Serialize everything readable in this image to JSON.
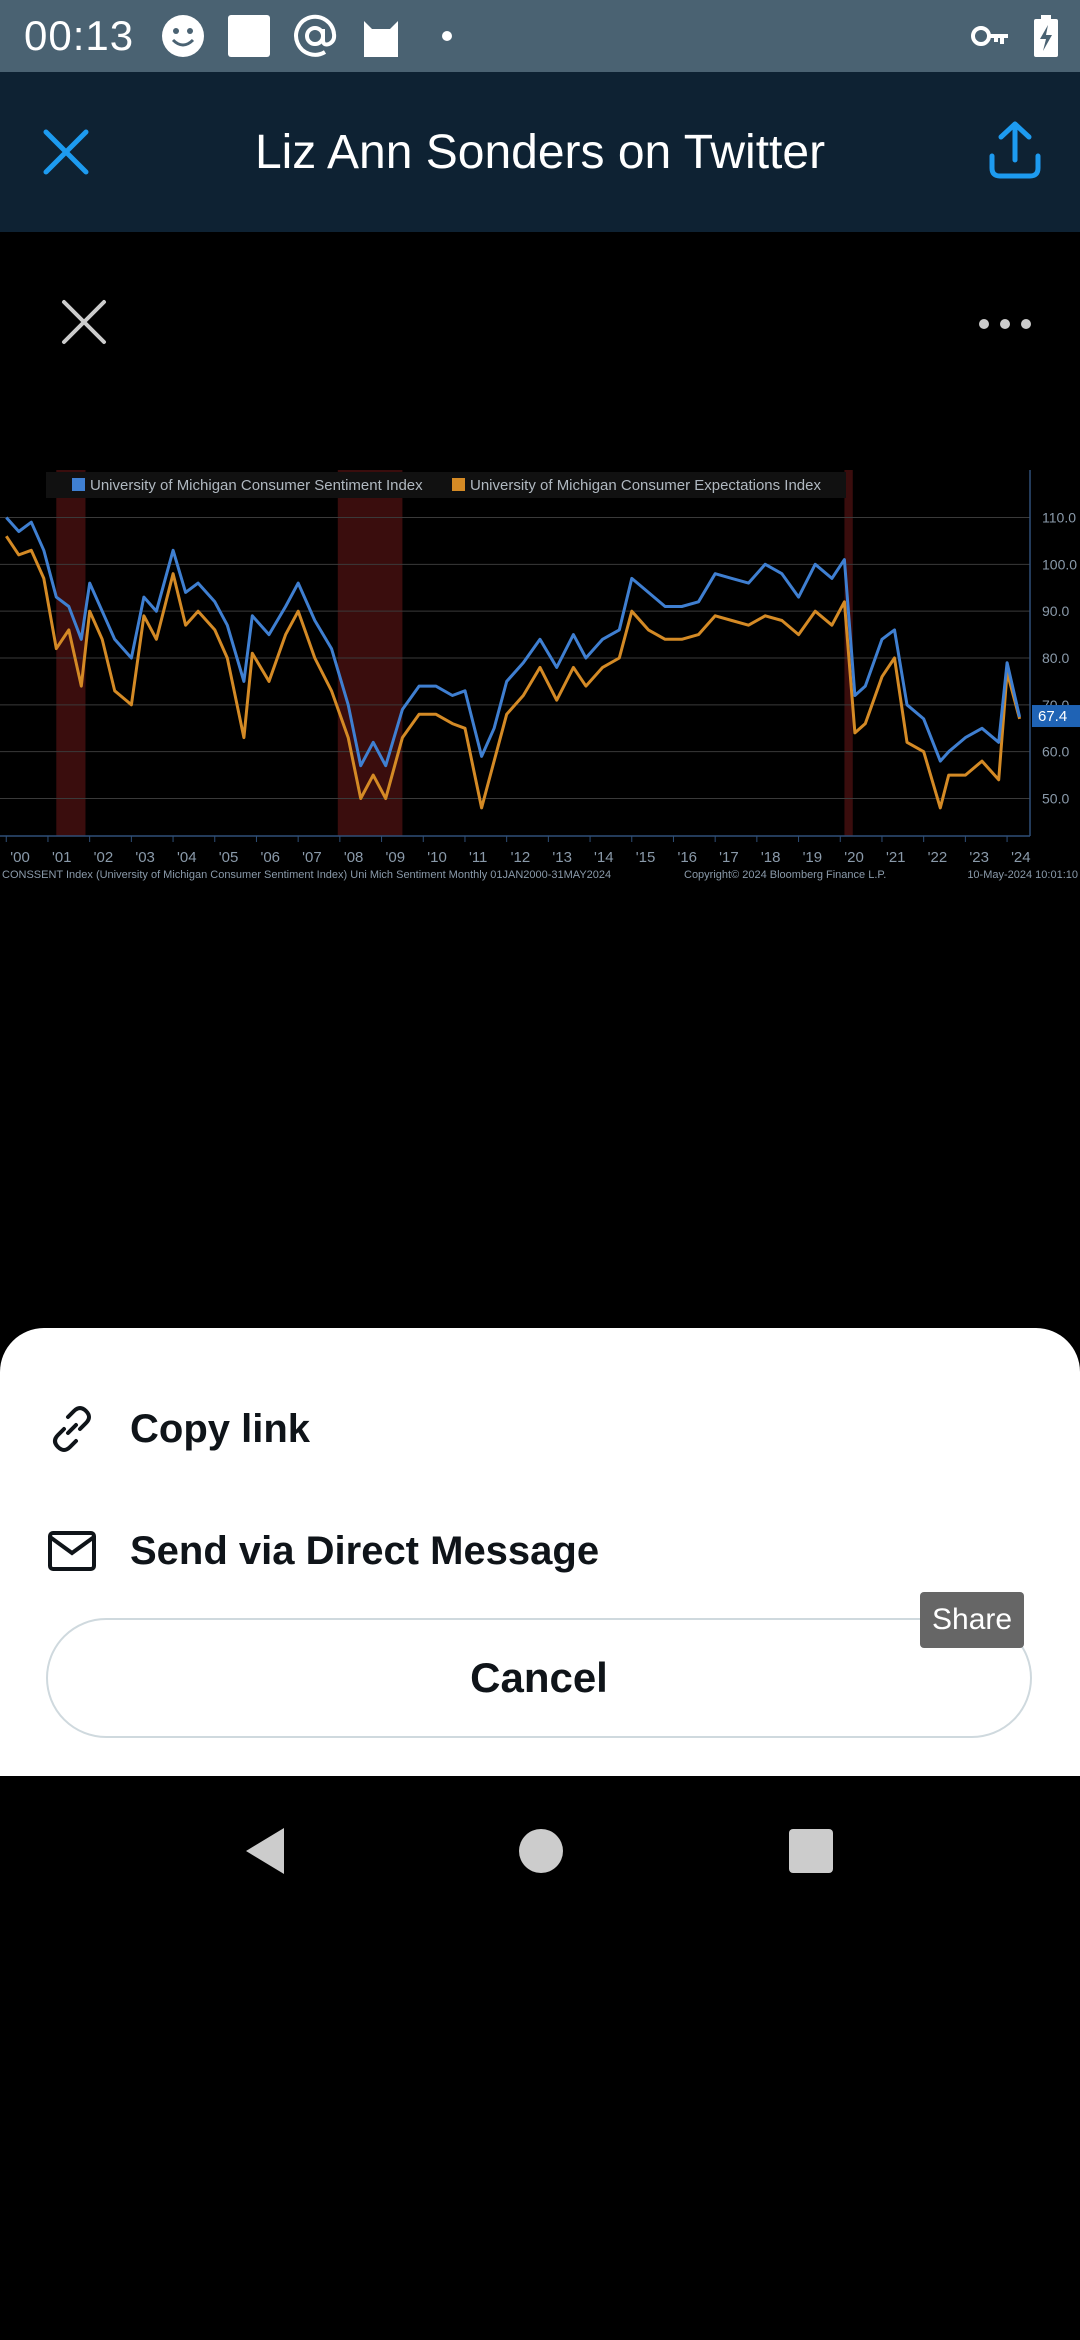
{
  "status_bar": {
    "time": "00:13",
    "left_icons": [
      "smiley-icon",
      "square-icon",
      "at-icon",
      "cat-icon",
      "dot-icon"
    ],
    "right_icons": [
      "key-icon",
      "battery-charging-icon"
    ]
  },
  "app_bar": {
    "title": "Liz Ann Sonders on Twitter",
    "background": "#0e2233",
    "accent": "#1d9bf0"
  },
  "viewer": {
    "close_icon": "close-icon",
    "more_icon": "more-horizontal-icon"
  },
  "chart_data": {
    "type": "line",
    "legend": [
      {
        "name": "University of Michigan Consumer Sentiment Index",
        "color": "#3f7fd1"
      },
      {
        "name": "University of Michigan Consumer Expectations Index",
        "color": "#d48a25"
      }
    ],
    "x_ticks": [
      "'00",
      "'01",
      "'02",
      "'03",
      "'04",
      "'05",
      "'06",
      "'07",
      "'08",
      "'09",
      "'10",
      "'11",
      "'12",
      "'13",
      "'14",
      "'15",
      "'16",
      "'17",
      "'18",
      "'19",
      "'20",
      "'21",
      "'22",
      "'23",
      "'24"
    ],
    "y_ticks": [
      "110.0",
      "100.0",
      "90.0",
      "80.0",
      "70.0",
      "60.0",
      "50.0"
    ],
    "ylim": [
      42,
      118
    ],
    "last_value_label": "67.4",
    "recession_shading": [
      [
        2001.2,
        2001.9
      ],
      [
        2007.95,
        2009.5
      ],
      [
        2020.1,
        2020.3
      ]
    ],
    "series": [
      {
        "name": "University of Michigan Consumer Sentiment Index",
        "x": [
          2000.0,
          2000.3,
          2000.6,
          2000.9,
          2001.2,
          2001.5,
          2001.8,
          2002.0,
          2002.3,
          2002.6,
          2003.0,
          2003.3,
          2003.6,
          2004.0,
          2004.3,
          2004.6,
          2005.0,
          2005.3,
          2005.7,
          2005.9,
          2006.3,
          2006.7,
          2007.0,
          2007.4,
          2007.8,
          2008.2,
          2008.5,
          2008.8,
          2009.1,
          2009.5,
          2009.9,
          2010.3,
          2010.7,
          2011.0,
          2011.4,
          2011.7,
          2012.0,
          2012.4,
          2012.8,
          2013.2,
          2013.6,
          2013.9,
          2014.3,
          2014.7,
          2015.0,
          2015.4,
          2015.8,
          2016.2,
          2016.6,
          2017.0,
          2017.4,
          2017.8,
          2018.2,
          2018.6,
          2019.0,
          2019.4,
          2019.8,
          2020.1,
          2020.35,
          2020.6,
          2021.0,
          2021.3,
          2021.6,
          2022.0,
          2022.4,
          2022.6,
          2023.0,
          2023.4,
          2023.8,
          2024.0,
          2024.3
        ],
        "values": [
          110,
          107,
          109,
          103,
          93,
          91,
          84,
          96,
          90,
          84,
          80,
          93,
          90,
          103,
          94,
          96,
          92,
          87,
          75,
          89,
          85,
          91,
          96,
          88,
          82,
          70,
          57,
          62,
          57,
          69,
          74,
          74,
          72,
          73,
          59,
          65,
          75,
          79,
          84,
          78,
          85,
          80,
          84,
          86,
          97,
          94,
          91,
          91,
          92,
          98,
          97,
          96,
          100,
          98,
          93,
          100,
          97,
          101,
          72,
          74,
          84,
          86,
          70,
          67,
          58,
          60,
          63,
          65,
          62,
          79,
          67.4
        ]
      },
      {
        "name": "University of Michigan Consumer Expectations Index",
        "x": [
          2000.0,
          2000.3,
          2000.6,
          2000.9,
          2001.2,
          2001.5,
          2001.8,
          2002.0,
          2002.3,
          2002.6,
          2003.0,
          2003.3,
          2003.6,
          2004.0,
          2004.3,
          2004.6,
          2005.0,
          2005.3,
          2005.7,
          2005.9,
          2006.3,
          2006.7,
          2007.0,
          2007.4,
          2007.8,
          2008.2,
          2008.5,
          2008.8,
          2009.1,
          2009.5,
          2009.9,
          2010.3,
          2010.7,
          2011.0,
          2011.4,
          2011.7,
          2012.0,
          2012.4,
          2012.8,
          2013.2,
          2013.6,
          2013.9,
          2014.3,
          2014.7,
          2015.0,
          2015.4,
          2015.8,
          2016.2,
          2016.6,
          2017.0,
          2017.4,
          2017.8,
          2018.2,
          2018.6,
          2019.0,
          2019.4,
          2019.8,
          2020.1,
          2020.35,
          2020.6,
          2021.0,
          2021.3,
          2021.6,
          2022.0,
          2022.4,
          2022.6,
          2023.0,
          2023.4,
          2023.8,
          2024.0,
          2024.3
        ],
        "values": [
          106,
          102,
          103,
          97,
          82,
          86,
          74,
          90,
          84,
          73,
          70,
          89,
          84,
          98,
          87,
          90,
          86,
          80,
          63,
          81,
          75,
          85,
          90,
          80,
          73,
          63,
          50,
          55,
          50,
          63,
          68,
          68,
          66,
          65,
          48,
          58,
          68,
          72,
          78,
          71,
          78,
          74,
          78,
          80,
          90,
          86,
          84,
          84,
          85,
          89,
          88,
          87,
          89,
          88,
          85,
          90,
          87,
          92,
          64,
          66,
          76,
          80,
          62,
          60,
          48,
          55,
          55,
          58,
          54,
          77,
          67
        ]
      }
    ],
    "footer_left": "CONSSENT Index (University of Michigan Consumer Sentiment Index) Uni Mich Sentiment  Monthly 01JAN2000-31MAY2024",
    "footer_center": "Copyright© 2024 Bloomberg Finance L.P.",
    "footer_right": "10-May-2024 10:01:10"
  },
  "share_sheet": {
    "items": [
      {
        "icon": "link-icon",
        "label": "Copy link"
      },
      {
        "icon": "mail-icon",
        "label": "Send via Direct Message"
      }
    ],
    "cancel_label": "Cancel",
    "tooltip": "Share"
  },
  "nav_bar": {
    "icons": [
      "back-icon",
      "home-icon",
      "recents-icon"
    ]
  }
}
